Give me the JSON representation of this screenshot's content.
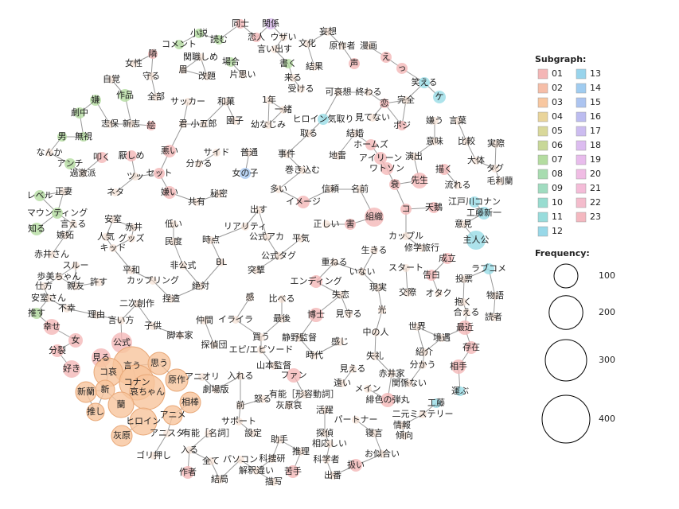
{
  "nodes": [
    "同士",
    "関係",
    "恋人",
    "ウザい",
    "妄想",
    "文化",
    "言い出す",
    "原作者",
    "漫画",
    "小説",
    "読む",
    "コメント",
    "隣",
    "関職しめ",
    "場合",
    "書く",
    "声",
    "え",
    "っ",
    "女性",
    "守る",
    "眉",
    "改題",
    "片思い",
    "来る",
    "結果",
    "自覚",
    "作品",
    "全部",
    "サッカー",
    "和菓",
    "1年",
    "受ける",
    "可哀想",
    "終わる",
    "完全",
    "笑える",
    "ケ",
    "嫌",
    "劇中",
    "一緒",
    "恋",
    "志保",
    "新志",
    "絵",
    "君",
    "小五郎",
    "園子",
    "幼なじみ",
    "ヒロイン気取り",
    "見てない",
    "ポジ",
    "嫌う",
    "言葉",
    "取る",
    "結婚",
    "ホームズ",
    "意味",
    "比較",
    "実際",
    "男",
    "無視",
    "なんか",
    "アンチ",
    "叩く",
    "厭しめ",
    "悪い",
    "サイド",
    "普通",
    "事件",
    "地雷",
    "アイリーン",
    "ワトソン",
    "演出",
    "大体",
    "タグ",
    "分かる",
    "過激派",
    "ツッ",
    "セット",
    "女の子",
    "巻き込む",
    "先生",
    "描く",
    "衰",
    "毛利蘭",
    "流れる",
    "レベル",
    "正妻",
    "ネタ",
    "嫌い",
    "秘密",
    "多い",
    "信頼",
    "名前",
    "江戸川コナン",
    "共有",
    "イメージ",
    "天鵝",
    "コ",
    "工藤新一",
    "マウンティング",
    "出す",
    "正しい",
    "害",
    "組織",
    "言える",
    "安室",
    "赤井",
    "低い",
    "リアリティ",
    "意見",
    "知る",
    "嫉妬",
    "人気",
    "グッズ",
    "民度",
    "時点",
    "公式アカ",
    "平気",
    "カップル",
    "主人公",
    "修学旅行",
    "キッド",
    "生きる",
    "赤井さん",
    "公式タグ",
    "成立",
    "ラブコメ",
    "スルー",
    "非公式",
    "BL",
    "重ねる",
    "スタート",
    "歩美ちゃん",
    "平和",
    "突撃",
    "いない",
    "告白",
    "投票",
    "仕方",
    "親友",
    "許す",
    "カップリング",
    "絶対",
    "エンディング",
    "安室さん",
    "現実",
    "交際",
    "オタク",
    "物語",
    "不幸",
    "二次創作",
    "捏造",
    "感",
    "比べる",
    "失恋",
    "抱く",
    "推す",
    "理由",
    "言い方",
    "最後",
    "博士",
    "見守る",
    "光",
    "合える",
    "読者",
    "仲間",
    "イライラ",
    "幸せ",
    "子供",
    "世界",
    "最近",
    "脚本家",
    "買う",
    "静野監督",
    "中の人",
    "女",
    "公式",
    "探偵団",
    "境遇",
    "感じ",
    "存在",
    "分裂",
    "エピ/エピソード",
    "時代",
    "紹介",
    "見る",
    "言う",
    "思う",
    "失礼",
    "山本監督",
    "分かう",
    "相手",
    "好き",
    "コ哀",
    "コナン",
    "アニオリ",
    "入れる",
    "ファン",
    "見える",
    "赤井家",
    "原作",
    "哀ちゃん",
    "新",
    "劇場版",
    "怒る",
    "関係ない",
    "遠い",
    "新蘭",
    "有能［形容動詞］",
    "メイン",
    "運ぶ",
    "緋色の弾丸",
    "蘭",
    "相棒",
    "前",
    "灰原哀",
    "工藤",
    "推し",
    "アニメ",
    "活躍",
    "二元ミステリー",
    "ヒロイン",
    "パートナー",
    "サポート",
    "情報",
    "灰原",
    "アニスタ",
    "有能［名詞］",
    "設定",
    "探偵",
    "寝言",
    "傾向",
    "助手",
    "相応しい",
    "推理",
    "お似合い",
    "ゴリ押し",
    "入る",
    "全て",
    "パソコン",
    "科捜研",
    "科学者",
    "扱い",
    "作者",
    "解釈違い",
    "苦手",
    "出番",
    "結局",
    "描写"
  ],
  "subgraph_legend": {
    "title": "Subgraph:",
    "items": [
      {
        "label": "01",
        "color": "#f4b6b6"
      },
      {
        "label": "02",
        "color": "#f6bea8"
      },
      {
        "label": "03",
        "color": "#f8c7a0"
      },
      {
        "label": "04",
        "color": "#e9d49a"
      },
      {
        "label": "05",
        "color": "#d9d89a"
      },
      {
        "label": "06",
        "color": "#c8d898"
      },
      {
        "label": "07",
        "color": "#b4dca0"
      },
      {
        "label": "08",
        "color": "#a8dcb0"
      },
      {
        "label": "09",
        "color": "#a0dcc0"
      },
      {
        "label": "10",
        "color": "#98dcd0"
      },
      {
        "label": "11",
        "color": "#98dcdc"
      },
      {
        "label": "12",
        "color": "#98d8e8"
      },
      {
        "label": "13",
        "color": "#98d4ec"
      },
      {
        "label": "14",
        "color": "#a0ccf0"
      },
      {
        "label": "15",
        "color": "#acc4f0"
      },
      {
        "label": "16",
        "color": "#bcbcf0"
      },
      {
        "label": "17",
        "color": "#ccbcf0"
      },
      {
        "label": "18",
        "color": "#dcbcf0"
      },
      {
        "label": "19",
        "color": "#e8bcec"
      },
      {
        "label": "20",
        "color": "#f0bce4"
      },
      {
        "label": "21",
        "color": "#f4bcd8"
      },
      {
        "label": "22",
        "color": "#f4bccc"
      },
      {
        "label": "23",
        "color": "#f4b8c0"
      }
    ]
  },
  "frequency_legend": {
    "title": "Frequency:",
    "values": [
      100,
      200,
      300,
      400
    ]
  }
}
